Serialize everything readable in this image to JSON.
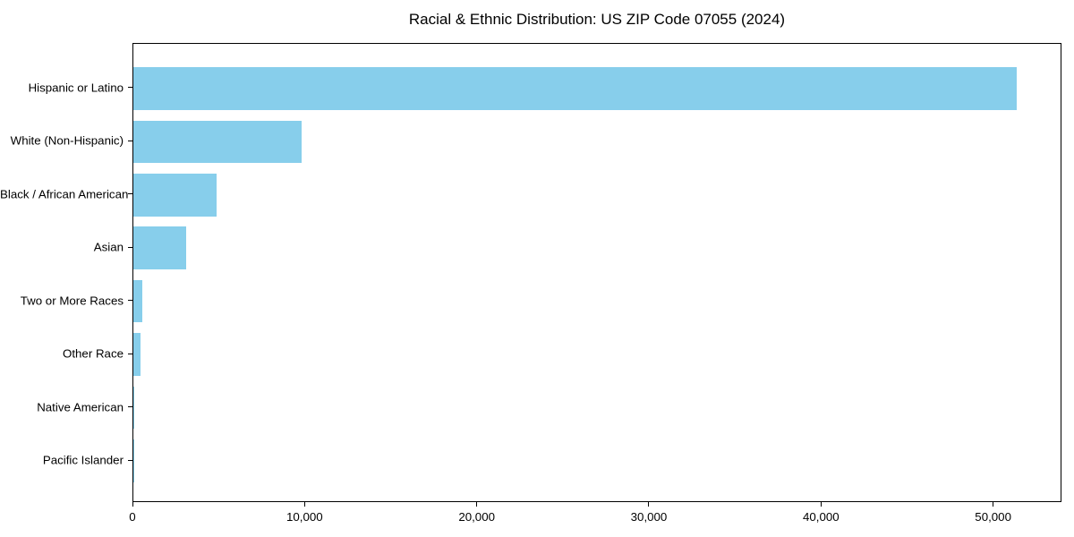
{
  "chart_data": {
    "type": "bar",
    "orientation": "horizontal",
    "title": "Racial & Ethnic Distribution: US ZIP Code 07055 (2024)",
    "categories": [
      "Hispanic or Latino",
      "White (Non-Hispanic)",
      "Black / African American",
      "Asian",
      "Two or More Races",
      "Other Race",
      "Native American",
      "Pacific Islander"
    ],
    "values": [
      51400,
      9800,
      4850,
      3090,
      500,
      430,
      50,
      20
    ],
    "xlabel": "",
    "ylabel": "",
    "xlim": [
      0,
      53970
    ],
    "xticks": [
      0,
      10000,
      20000,
      30000,
      40000,
      50000
    ],
    "xtick_labels": [
      "0",
      "10,000",
      "20,000",
      "30,000",
      "40,000",
      "50,000"
    ],
    "bar_color": "#87CEEB",
    "spine_color": "#000000",
    "text_color": "#000000",
    "legend": false,
    "grid": false
  }
}
